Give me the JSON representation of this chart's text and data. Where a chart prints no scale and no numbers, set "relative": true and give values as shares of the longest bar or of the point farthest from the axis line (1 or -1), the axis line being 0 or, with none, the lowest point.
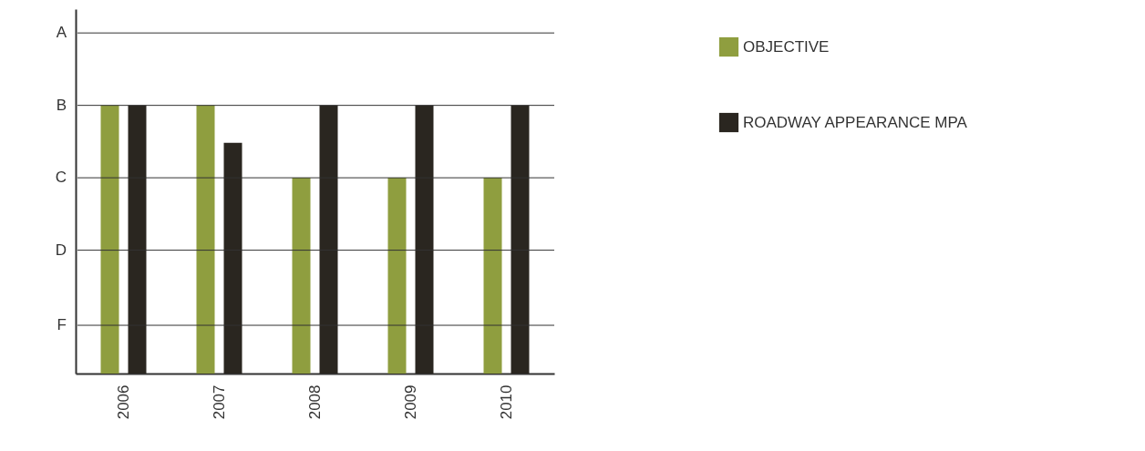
{
  "chart_data": {
    "type": "bar",
    "relative": true,
    "categories": [
      "2006",
      "2007",
      "2008",
      "2009",
      "2010"
    ],
    "series": [
      {
        "name": "OBJECTIVE",
        "color": "#8f9e3f",
        "values": [
          1,
          1,
          0.73,
          0.73,
          0.73
        ]
      },
      {
        "name": "ROADWAY APPEARANCE MPA",
        "color": "#2a2620",
        "values": [
          1,
          0.86,
          1,
          1,
          1
        ]
      }
    ],
    "ref_lines": [
      {
        "axis": "y",
        "value": 1.27,
        "label": "A",
        "color": "#333333"
      },
      {
        "axis": "y",
        "value": 1,
        "label": "B",
        "color": "#333333"
      },
      {
        "axis": "y",
        "value": 0.73,
        "label": "C",
        "color": "#333333"
      },
      {
        "axis": "y",
        "value": 0.46,
        "label": "D",
        "color": "#333333"
      },
      {
        "axis": "y",
        "value": 0.18,
        "label": "F",
        "color": "#333333"
      }
    ],
    "legend": "right"
  }
}
